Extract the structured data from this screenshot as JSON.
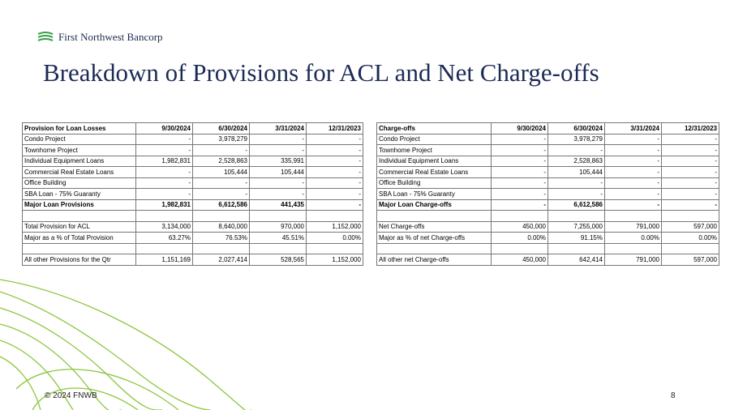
{
  "header": {
    "logo": "First Northwest Bancorp",
    "title": "Breakdown of Provisions for ACL and Net Charge-offs"
  },
  "tables": [
    {
      "columns": [
        "Provision for Loan Losses",
        "9/30/2024",
        "6/30/2024",
        "3/31/2024",
        "12/31/2023"
      ],
      "groups": [
        [
          [
            "Condo Project",
            "-",
            "3,978,279",
            "-",
            "-"
          ],
          [
            "Townhome Project",
            "-",
            "-",
            "-",
            "-"
          ],
          [
            "Individual Equipment Loans",
            "1,982,831",
            "2,528,863",
            "335,991",
            "-"
          ],
          [
            "Commercial Real Estate Loans",
            "-",
            "105,444",
            "105,444",
            "-"
          ],
          [
            "Office Building",
            "-",
            "-",
            "-",
            "-"
          ],
          [
            "SBA Loan - 75% Guaranty",
            "-",
            "-",
            "-",
            "-"
          ],
          [
            "Major Loan Provisions",
            "1,982,831",
            "6,612,586",
            "441,435",
            "-"
          ]
        ],
        [
          [
            "Total Provision for ACL",
            "3,134,000",
            "8,640,000",
            "970,000",
            "1,152,000"
          ],
          [
            "Major as a % of Total Provision",
            "63.27%",
            "76.53%",
            "45.51%",
            "0.00%"
          ]
        ],
        [
          [
            "All other Provisions for the Qtr",
            "1,151,169",
            "2,027,414",
            "528,565",
            "1,152,000"
          ]
        ]
      ]
    },
    {
      "columns": [
        "Charge-offs",
        "9/30/2024",
        "6/30/2024",
        "3/31/2024",
        "12/31/2023"
      ],
      "groups": [
        [
          [
            "Condo Project",
            "-",
            "3,978,279",
            "-",
            "-"
          ],
          [
            "Townhome Project",
            "-",
            "-",
            "-",
            "-"
          ],
          [
            "Individual Equipment Loans",
            "-",
            "2,528,863",
            "-",
            "-"
          ],
          [
            "Commercial Real Estate Loans",
            "-",
            "105,444",
            "-",
            "-"
          ],
          [
            "Office Building",
            "-",
            "-",
            "-",
            "-"
          ],
          [
            "SBA Loan - 75% Guaranty",
            "-",
            "-",
            "-",
            "-"
          ],
          [
            "Major Loan Charge-offs",
            "-",
            "6,612,586",
            "-",
            "-"
          ]
        ],
        [
          [
            "Net Charge-offs",
            "450,000",
            "7,255,000",
            "791,000",
            "597,000"
          ],
          [
            "Major as % of net Charge-offs",
            "0.00%",
            "91.15%",
            "0.00%",
            "0.00%"
          ]
        ],
        [
          [
            "All other net Charge-offs",
            "450,000",
            "642,414",
            "791,000",
            "597,000"
          ]
        ]
      ]
    }
  ],
  "footer": {
    "copyright": "© 2024 FNWB",
    "page": "8"
  }
}
